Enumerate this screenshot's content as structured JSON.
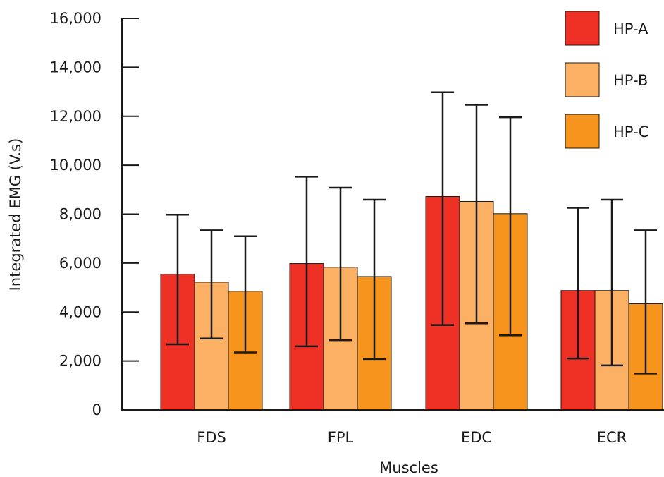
{
  "chart_data": {
    "type": "bar",
    "title": "",
    "xlabel": "Muscles",
    "ylabel": "Integrated EMG (V.s)",
    "ylim": [
      0,
      16000
    ],
    "yticks": [
      0,
      2000,
      4000,
      6000,
      8000,
      10000,
      12000,
      14000,
      16000
    ],
    "ytick_labels": [
      "0",
      "2,000",
      "4,000",
      "6,000",
      "8,000",
      "10,000",
      "12,000",
      "14,000",
      "16,000"
    ],
    "categories": [
      "FDS",
      "FPL",
      "EDC",
      "ECR"
    ],
    "legend_position": "top-right",
    "grid": false,
    "series": [
      {
        "name": "HP-A",
        "color": "#ee3124",
        "values": [
          5550,
          5980,
          8720,
          4880
        ],
        "error_low": [
          2680,
          2600,
          3470,
          2100
        ],
        "error_high": [
          7980,
          9530,
          12980,
          8260
        ]
      },
      {
        "name": "HP-B",
        "color": "#fbb063",
        "values": [
          5220,
          5830,
          8520,
          4880
        ],
        "error_low": [
          2920,
          2850,
          3540,
          1820
        ],
        "error_high": [
          7340,
          9080,
          12470,
          8590
        ]
      },
      {
        "name": "HP-C",
        "color": "#f7941d",
        "values": [
          4850,
          5450,
          8020,
          4340
        ],
        "error_low": [
          2350,
          2080,
          3050,
          1490
        ],
        "error_high": [
          7100,
          8590,
          11960,
          7340
        ]
      }
    ]
  }
}
